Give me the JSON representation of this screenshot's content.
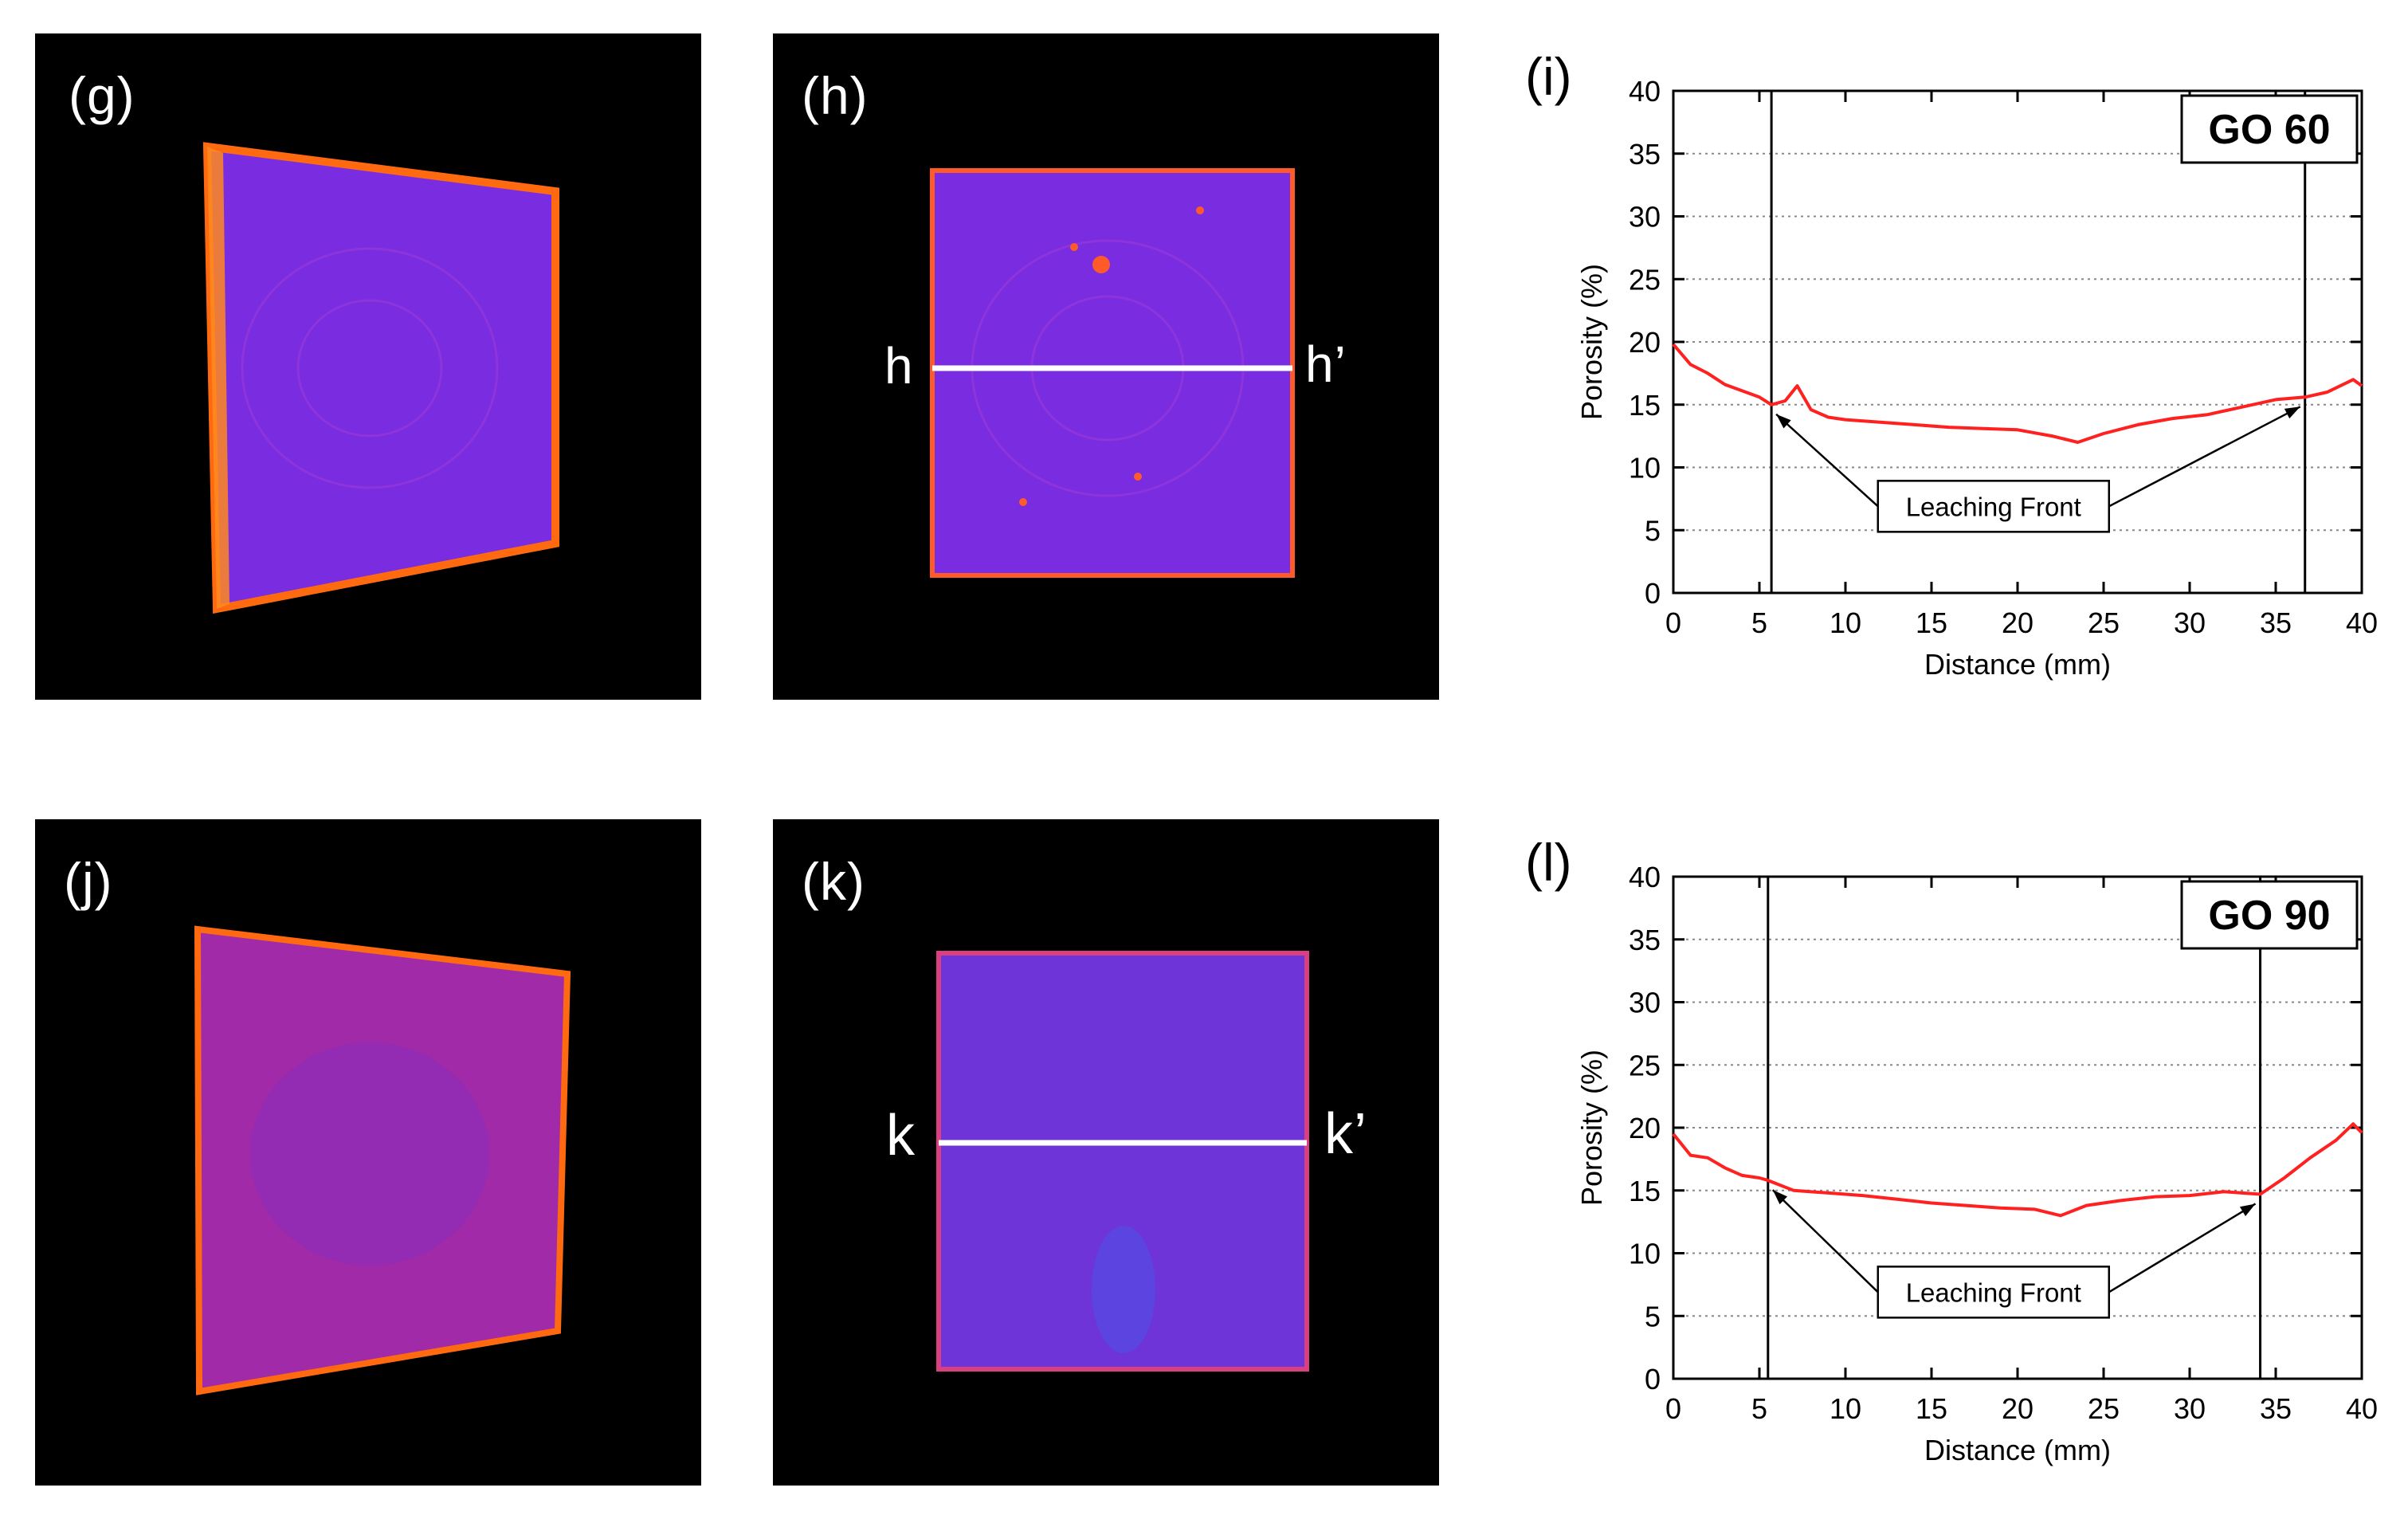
{
  "panels": {
    "g": {
      "label": "(g)"
    },
    "h": {
      "label": "(h)",
      "line_start": "h",
      "line_end": "h’"
    },
    "i": {
      "label": "(i)"
    },
    "j": {
      "label": "(j)"
    },
    "k": {
      "label": "(k)",
      "line_start": "k",
      "line_end": "k’"
    },
    "l": {
      "label": "(l)"
    }
  },
  "colors": {
    "series": "#ff2020",
    "specimen_fill": "#7a2ce0",
    "specimen_edge": "#ff6a10",
    "profile_line": "#ffffff"
  },
  "chart_data": [
    {
      "type": "line",
      "panel": "(i)",
      "tag": "GO 60",
      "xlabel": "Distance (mm)",
      "ylabel": "Porosity (%)",
      "xlim": [
        0,
        40
      ],
      "ylim": [
        0,
        40
      ],
      "xticks": [
        0,
        5,
        10,
        15,
        20,
        25,
        30,
        35,
        40
      ],
      "yticks": [
        0,
        5,
        10,
        15,
        20,
        25,
        30,
        35,
        40
      ],
      "grid": "horizontal dotted",
      "annotation": "Leaching Front",
      "fronts": [
        5.7,
        36.7
      ],
      "series": [
        {
          "name": "Porosity",
          "x": [
            0,
            1,
            2,
            3,
            4,
            5,
            5.7,
            6.5,
            7.2,
            8,
            9,
            10,
            12,
            14,
            16,
            18,
            20,
            22,
            23.5,
            25,
            27,
            29,
            31,
            33,
            35,
            36.7,
            38,
            39.5,
            40
          ],
          "y": [
            19.8,
            18.2,
            17.5,
            16.6,
            16.1,
            15.6,
            15.0,
            15.3,
            16.5,
            14.6,
            14.0,
            13.8,
            13.6,
            13.4,
            13.2,
            13.1,
            13.0,
            12.5,
            12.0,
            12.7,
            13.4,
            13.9,
            14.2,
            14.8,
            15.4,
            15.6,
            16.0,
            17.0,
            16.5
          ]
        }
      ]
    },
    {
      "type": "line",
      "panel": "(l)",
      "tag": "GO 90",
      "xlabel": "Distance (mm)",
      "ylabel": "Porosity (%)",
      "xlim": [
        0,
        40
      ],
      "ylim": [
        0,
        40
      ],
      "xticks": [
        0,
        5,
        10,
        15,
        20,
        25,
        30,
        35,
        40
      ],
      "yticks": [
        0,
        5,
        10,
        15,
        20,
        25,
        30,
        35,
        40
      ],
      "grid": "horizontal dotted",
      "annotation": "Leaching Front",
      "fronts": [
        5.5,
        34.1
      ],
      "series": [
        {
          "name": "Porosity",
          "x": [
            0,
            1,
            2,
            3,
            4,
            5,
            5.5,
            7,
            9,
            11,
            13,
            15,
            17,
            19,
            21,
            22.5,
            24,
            26,
            28,
            30,
            32,
            34.1,
            35.5,
            37,
            38.5,
            39.5,
            40
          ],
          "y": [
            19.5,
            17.8,
            17.6,
            16.8,
            16.2,
            16.0,
            15.8,
            15.0,
            14.8,
            14.6,
            14.3,
            14.0,
            13.8,
            13.6,
            13.5,
            13.0,
            13.8,
            14.2,
            14.5,
            14.6,
            14.9,
            14.7,
            16.0,
            17.6,
            19.0,
            20.3,
            19.6
          ]
        }
      ]
    }
  ]
}
